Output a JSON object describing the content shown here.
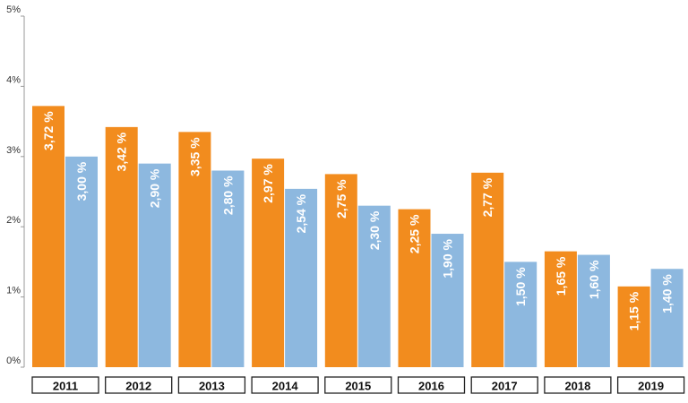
{
  "chart_data": {
    "type": "bar",
    "title": "",
    "xlabel": "",
    "ylabel": "",
    "ylim": [
      0,
      5
    ],
    "yticks": [
      "0%",
      "1%",
      "2%",
      "3%",
      "4%",
      "5%"
    ],
    "grid": false,
    "categories": [
      "2011",
      "2012",
      "2013",
      "2014",
      "2015",
      "2016",
      "2017",
      "2018",
      "2019"
    ],
    "series": [
      {
        "color": "#F28C1E",
        "values": [
          3.72,
          3.42,
          3.35,
          2.97,
          2.75,
          2.25,
          2.77,
          1.65,
          1.15
        ],
        "labels": [
          "3,72 %",
          "3,42 %",
          "3,35 %",
          "2,97 %",
          "2,75 %",
          "2,25 %",
          "2,77 %",
          "1,65 %",
          "1,15 %"
        ]
      },
      {
        "color": "#8DB8DF",
        "values": [
          3.0,
          2.9,
          2.8,
          2.54,
          2.3,
          1.9,
          1.5,
          1.6,
          1.4
        ],
        "labels": [
          "3,00 %",
          "2,90 %",
          "2,80 %",
          "2,54 %",
          "2,30 %",
          "1,90 %",
          "1,50 %",
          "1,60 %",
          "1,40 %"
        ]
      }
    ]
  }
}
